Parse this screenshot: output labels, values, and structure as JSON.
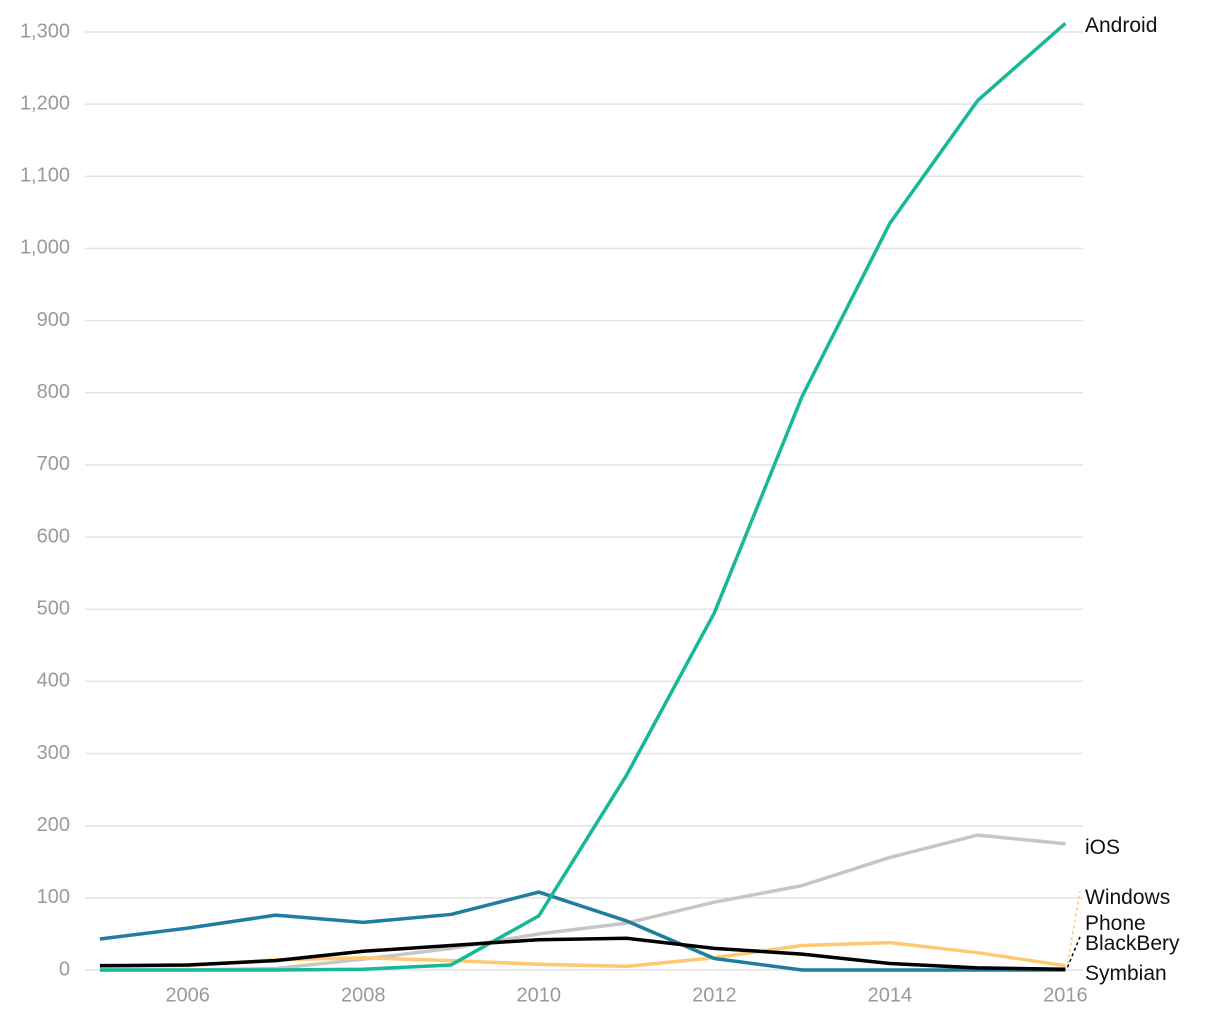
{
  "chart_data": {
    "type": "line",
    "x": [
      2005,
      2006,
      2007,
      2008,
      2009,
      2010,
      2011,
      2012,
      2013,
      2014,
      2015,
      2016
    ],
    "series": [
      {
        "name": "Android",
        "color": "#17b897",
        "values": [
          0,
          0,
          0,
          1,
          7,
          75,
          270,
          495,
          795,
          1035,
          1205,
          1312
        ]
      },
      {
        "name": "iOS",
        "color": "#c6c6c6",
        "values": [
          0,
          0,
          2,
          15,
          30,
          50,
          65,
          94,
          117,
          156,
          187,
          175
        ]
      },
      {
        "name": "Windows Phone",
        "color": "#fdca72",
        "values": [
          5,
          6,
          14,
          17,
          13,
          8,
          5,
          17,
          34,
          38,
          24,
          6
        ]
      },
      {
        "name": "BlackBery",
        "color": "#000000",
        "values": [
          6,
          7,
          13,
          26,
          34,
          42,
          44,
          30,
          22,
          9,
          3,
          1
        ]
      },
      {
        "name": "Symbian",
        "color": "#1f7d9e",
        "values": [
          43,
          58,
          76,
          66,
          77,
          108,
          68,
          16,
          0,
          0,
          0,
          0
        ]
      }
    ],
    "xlim": [
      2004.83,
      2016.2
    ],
    "xticks": [
      2006,
      2008,
      2010,
      2012,
      2014,
      2016
    ],
    "ylim": [
      0,
      1300
    ],
    "yticks": [
      0,
      100,
      200,
      300,
      400,
      500,
      600,
      700,
      800,
      900,
      {
        "value": 1000,
        "label": "1,000"
      },
      {
        "value": 1100,
        "label": "1,100"
      },
      {
        "value": 1200,
        "label": "1,200"
      },
      {
        "value": 1300,
        "label": "1,300"
      }
    ],
    "grid": true
  }
}
